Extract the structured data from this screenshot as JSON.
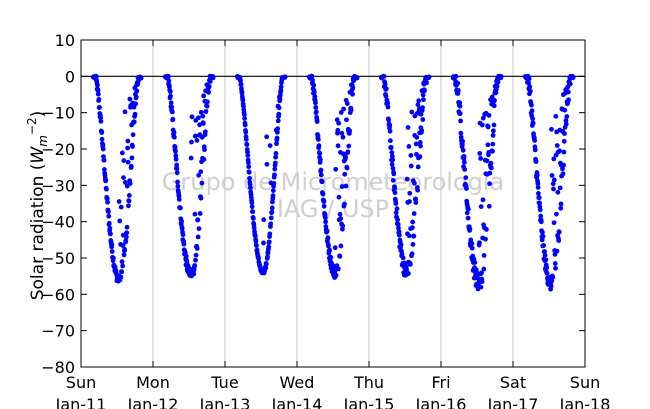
{
  "chart_data": {
    "type": "scatter",
    "title": "",
    "ylabel_text": "Solar radiation",
    "ylabel_unit_symbol": "W",
    "ylabel_unit_sub": "m",
    "ylabel_unit_exp": "−2",
    "xlabel": "",
    "watermark": [
      "Grupo de Micrometeorologia",
      "IAG / USP"
    ],
    "ylim": [
      -80,
      10
    ],
    "xlim": [
      0,
      7
    ],
    "yticks": [
      10,
      0,
      -10,
      -20,
      -30,
      -40,
      -50,
      -60,
      -70,
      -80
    ],
    "ytick_labels": [
      "10",
      "0",
      "−10",
      "−20",
      "−30",
      "−40",
      "−50",
      "−60",
      "−70",
      "−80"
    ],
    "xticks": [
      {
        "day": 0,
        "weekday": "Sun",
        "date": "Jan-11"
      },
      {
        "day": 1,
        "weekday": "Mon",
        "date": "Jan-12"
      },
      {
        "day": 2,
        "weekday": "Tue",
        "date": "Jan-13"
      },
      {
        "day": 3,
        "weekday": "Wed",
        "date": "Jan-14"
      },
      {
        "day": 4,
        "weekday": "Thu",
        "date": "Jan-15"
      },
      {
        "day": 5,
        "weekday": "Fri",
        "date": "Jan-16"
      },
      {
        "day": 6,
        "weekday": "Sat",
        "date": "Jan-17"
      },
      {
        "day": 7,
        "weekday": "Sun",
        "date": "Jan-18"
      }
    ],
    "grid": "vertical",
    "reference_line_y": 0,
    "marker_color": "#0000ff",
    "days": [
      {
        "date": "Jan-11",
        "daytime_start": 0.2,
        "daytime_end": 0.8,
        "min": -56,
        "noise": 8,
        "cloudy": 0.45
      },
      {
        "date": "Jan-12",
        "daytime_start": 1.2,
        "daytime_end": 1.8,
        "min": -55,
        "noise": 10,
        "cloudy": 0.6
      },
      {
        "date": "Jan-13",
        "daytime_start": 2.2,
        "daytime_end": 2.8,
        "min": -54,
        "noise": 3,
        "cloudy": 0.2
      },
      {
        "date": "Jan-14",
        "daytime_start": 3.2,
        "daytime_end": 3.8,
        "min": -54,
        "noise": 10,
        "cloudy": 0.55
      },
      {
        "date": "Jan-15",
        "daytime_start": 4.2,
        "daytime_end": 4.8,
        "min": -54,
        "noise": 14,
        "cloudy": 0.7
      },
      {
        "date": "Jan-16",
        "daytime_start": 5.2,
        "daytime_end": 5.8,
        "min": -57,
        "noise": 18,
        "cloudy": 0.75
      },
      {
        "date": "Jan-17",
        "daytime_start": 6.2,
        "daytime_end": 6.8,
        "min": -57,
        "noise": 14,
        "cloudy": 0.65
      }
    ]
  }
}
